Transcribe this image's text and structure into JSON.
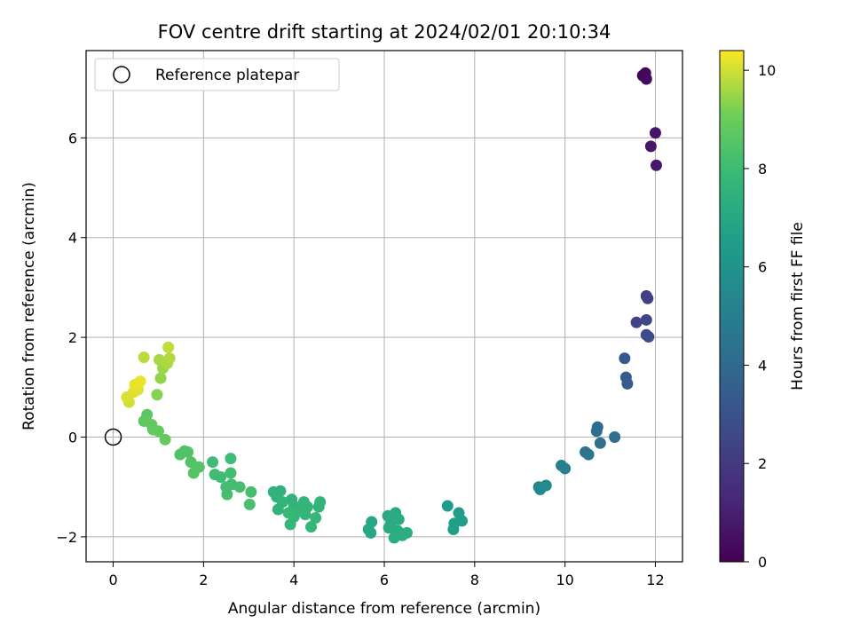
{
  "chart_data": {
    "type": "scatter",
    "title": "FOV centre drift starting at 2024/02/01 20:10:34",
    "xlabel": "Angular distance from reference (arcmin)",
    "ylabel": "Rotation from reference (arcmin)",
    "xlim": [
      -0.6,
      12.6
    ],
    "ylim": [
      -2.5,
      7.75
    ],
    "xticks": [
      0,
      2,
      4,
      6,
      8,
      10,
      12
    ],
    "xtick_labels": [
      "0",
      "2",
      "4",
      "6",
      "8",
      "10",
      "12"
    ],
    "yticks": [
      -2,
      0,
      2,
      4,
      6
    ],
    "ytick_labels": [
      "−2",
      "0",
      "2",
      "4",
      "6"
    ],
    "grid": true,
    "legend": {
      "placement": "top-left",
      "entries": [
        "Reference platepar"
      ]
    },
    "colormap": "viridis",
    "colorbar": {
      "label": "Hours from first FF file",
      "range": [
        0,
        10.4
      ],
      "ticks": [
        0,
        2,
        4,
        6,
        8,
        10
      ],
      "tick_labels": [
        "0",
        "2",
        "4",
        "6",
        "8",
        "10"
      ]
    },
    "reference_point": {
      "x": 0,
      "y": 0
    },
    "series": [
      {
        "points": [
          {
            "x": 11.72,
            "y": 7.25,
            "c": 0.1
          },
          {
            "x": 11.78,
            "y": 7.3,
            "c": 0.2
          },
          {
            "x": 11.8,
            "y": 7.18,
            "c": 0.3
          },
          {
            "x": 12.0,
            "y": 6.1,
            "c": 0.6
          },
          {
            "x": 11.9,
            "y": 5.83,
            "c": 0.7
          },
          {
            "x": 12.02,
            "y": 5.45,
            "c": 0.8
          },
          {
            "x": 11.8,
            "y": 2.83,
            "c": 2.2
          },
          {
            "x": 11.83,
            "y": 2.78,
            "c": 2.3
          },
          {
            "x": 11.58,
            "y": 2.3,
            "c": 2.4
          },
          {
            "x": 11.8,
            "y": 2.35,
            "c": 2.5
          },
          {
            "x": 11.8,
            "y": 2.05,
            "c": 2.6
          },
          {
            "x": 11.85,
            "y": 2.01,
            "c": 2.7
          },
          {
            "x": 11.32,
            "y": 1.58,
            "c": 3.2
          },
          {
            "x": 11.35,
            "y": 1.2,
            "c": 3.3
          },
          {
            "x": 11.38,
            "y": 1.07,
            "c": 3.4
          },
          {
            "x": 10.72,
            "y": 0.2,
            "c": 4.0
          },
          {
            "x": 10.7,
            "y": 0.12,
            "c": 4.1
          },
          {
            "x": 11.1,
            "y": 0.0,
            "c": 4.2
          },
          {
            "x": 10.78,
            "y": -0.12,
            "c": 4.3
          },
          {
            "x": 10.45,
            "y": -0.3,
            "c": 4.5
          },
          {
            "x": 10.52,
            "y": -0.35,
            "c": 4.6
          },
          {
            "x": 9.92,
            "y": -0.57,
            "c": 5.0
          },
          {
            "x": 10.0,
            "y": -0.63,
            "c": 5.1
          },
          {
            "x": 9.42,
            "y": -1.0,
            "c": 5.4
          },
          {
            "x": 9.45,
            "y": -1.05,
            "c": 5.5
          },
          {
            "x": 9.58,
            "y": -0.97,
            "c": 5.6
          },
          {
            "x": 7.4,
            "y": -1.38,
            "c": 6.3
          },
          {
            "x": 7.65,
            "y": -1.52,
            "c": 6.4
          },
          {
            "x": 7.55,
            "y": -1.73,
            "c": 6.5
          },
          {
            "x": 7.72,
            "y": -1.68,
            "c": 6.55
          },
          {
            "x": 7.53,
            "y": -1.85,
            "c": 6.6
          },
          {
            "x": 5.72,
            "y": -1.7,
            "c": 6.9
          },
          {
            "x": 5.65,
            "y": -1.85,
            "c": 6.95
          },
          {
            "x": 5.7,
            "y": -1.92,
            "c": 7.0
          },
          {
            "x": 6.08,
            "y": -1.58,
            "c": 7.05
          },
          {
            "x": 6.2,
            "y": -1.6,
            "c": 7.1
          },
          {
            "x": 6.25,
            "y": -1.52,
            "c": 7.1
          },
          {
            "x": 6.32,
            "y": -1.65,
            "c": 7.15
          },
          {
            "x": 6.15,
            "y": -1.72,
            "c": 7.15
          },
          {
            "x": 6.1,
            "y": -1.82,
            "c": 7.2
          },
          {
            "x": 6.3,
            "y": -1.88,
            "c": 7.2
          },
          {
            "x": 6.5,
            "y": -1.92,
            "c": 7.25
          },
          {
            "x": 6.4,
            "y": -1.97,
            "c": 7.25
          },
          {
            "x": 6.22,
            "y": -2.02,
            "c": 7.3
          },
          {
            "x": 3.55,
            "y": -1.1,
            "c": 7.5
          },
          {
            "x": 3.7,
            "y": -1.08,
            "c": 7.5
          },
          {
            "x": 3.62,
            "y": -1.2,
            "c": 7.55
          },
          {
            "x": 3.95,
            "y": -1.25,
            "c": 7.55
          },
          {
            "x": 3.75,
            "y": -1.3,
            "c": 7.6
          },
          {
            "x": 4.0,
            "y": -1.38,
            "c": 7.6
          },
          {
            "x": 3.65,
            "y": -1.45,
            "c": 7.6
          },
          {
            "x": 4.22,
            "y": -1.3,
            "c": 7.65
          },
          {
            "x": 4.3,
            "y": -1.4,
            "c": 7.65
          },
          {
            "x": 4.58,
            "y": -1.3,
            "c": 7.7
          },
          {
            "x": 4.55,
            "y": -1.4,
            "c": 7.7
          },
          {
            "x": 4.1,
            "y": -1.48,
            "c": 7.7
          },
          {
            "x": 4.25,
            "y": -1.55,
            "c": 7.75
          },
          {
            "x": 4.0,
            "y": -1.6,
            "c": 7.75
          },
          {
            "x": 4.48,
            "y": -1.62,
            "c": 7.8
          },
          {
            "x": 3.92,
            "y": -1.75,
            "c": 7.8
          },
          {
            "x": 4.38,
            "y": -1.8,
            "c": 7.8
          },
          {
            "x": 3.88,
            "y": -1.52,
            "c": 7.85
          },
          {
            "x": 2.6,
            "y": -0.43,
            "c": 8.0
          },
          {
            "x": 2.2,
            "y": -0.5,
            "c": 8.0
          },
          {
            "x": 2.25,
            "y": -0.75,
            "c": 8.05
          },
          {
            "x": 2.38,
            "y": -0.8,
            "c": 8.05
          },
          {
            "x": 2.6,
            "y": -0.72,
            "c": 8.1
          },
          {
            "x": 2.62,
            "y": -0.95,
            "c": 8.1
          },
          {
            "x": 2.5,
            "y": -1.0,
            "c": 8.15
          },
          {
            "x": 2.8,
            "y": -1.0,
            "c": 8.15
          },
          {
            "x": 3.05,
            "y": -1.1,
            "c": 8.2
          },
          {
            "x": 2.52,
            "y": -1.15,
            "c": 8.2
          },
          {
            "x": 3.02,
            "y": -1.35,
            "c": 8.25
          },
          {
            "x": 1.58,
            "y": -0.28,
            "c": 8.4
          },
          {
            "x": 1.48,
            "y": -0.35,
            "c": 8.45
          },
          {
            "x": 1.65,
            "y": -0.3,
            "c": 8.45
          },
          {
            "x": 1.72,
            "y": -0.5,
            "c": 8.5
          },
          {
            "x": 1.9,
            "y": -0.6,
            "c": 8.55
          },
          {
            "x": 1.78,
            "y": -0.72,
            "c": 8.55
          },
          {
            "x": 0.75,
            "y": 0.45,
            "c": 8.7
          },
          {
            "x": 0.68,
            "y": 0.32,
            "c": 8.75
          },
          {
            "x": 0.85,
            "y": 0.25,
            "c": 8.8
          },
          {
            "x": 0.88,
            "y": 0.15,
            "c": 8.8
          },
          {
            "x": 1.0,
            "y": 0.12,
            "c": 8.85
          },
          {
            "x": 1.15,
            "y": -0.05,
            "c": 8.9
          },
          {
            "x": 0.97,
            "y": 0.85,
            "c": 9.3
          },
          {
            "x": 1.05,
            "y": 1.18,
            "c": 9.4
          },
          {
            "x": 1.1,
            "y": 1.38,
            "c": 9.5
          },
          {
            "x": 1.02,
            "y": 1.55,
            "c": 9.6
          },
          {
            "x": 1.2,
            "y": 1.48,
            "c": 9.65
          },
          {
            "x": 1.25,
            "y": 1.58,
            "c": 9.7
          },
          {
            "x": 0.68,
            "y": 1.6,
            "c": 9.8
          },
          {
            "x": 1.22,
            "y": 1.8,
            "c": 9.85
          },
          {
            "x": 0.35,
            "y": 0.7,
            "c": 10.0
          },
          {
            "x": 0.3,
            "y": 0.8,
            "c": 10.05
          },
          {
            "x": 0.45,
            "y": 0.9,
            "c": 10.1
          },
          {
            "x": 0.55,
            "y": 0.95,
            "c": 10.15
          },
          {
            "x": 0.48,
            "y": 1.05,
            "c": 10.2
          },
          {
            "x": 0.6,
            "y": 1.12,
            "c": 10.25
          }
        ]
      }
    ]
  }
}
